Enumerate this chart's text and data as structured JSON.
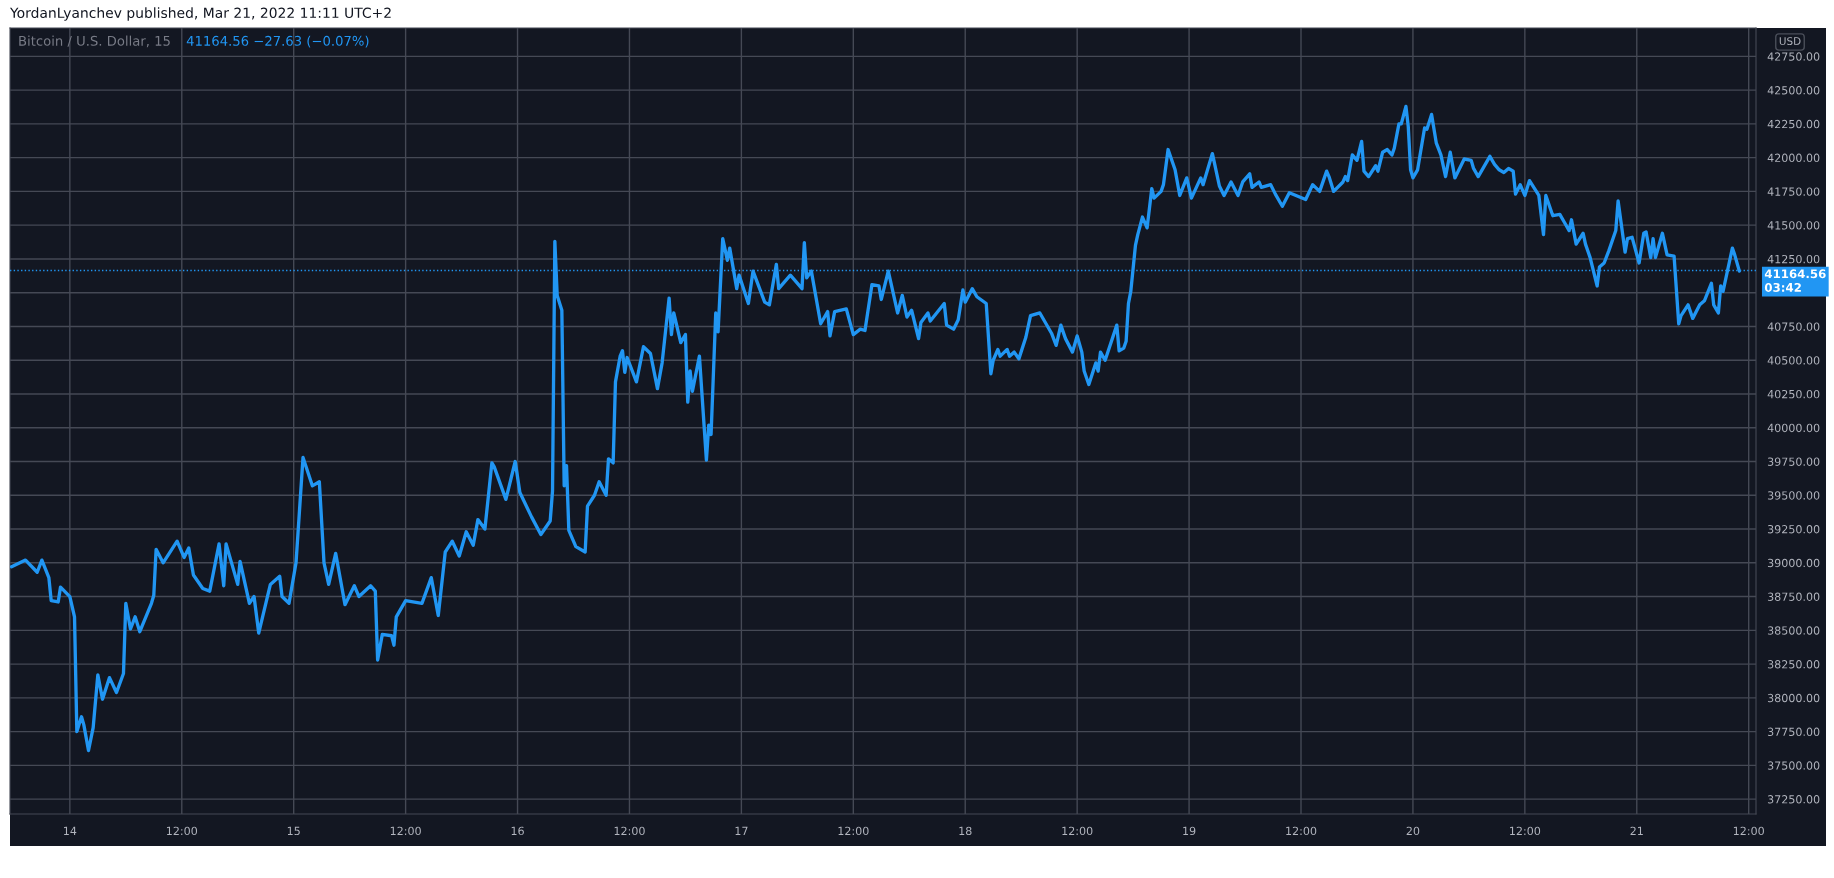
{
  "chart_data": {
    "type": "line",
    "title": "Bitcoin / U.S. Dollar, 15",
    "subtitle": "41164.56 −27.63 (−0.07%)",
    "ylabel": "USD",
    "annotations": [
      "YordanLyanchev published, Mar 21, 2022 11:11 UTC+2"
    ],
    "x": [
      "2022-03-13T17:45",
      "2022-03-13T19:15",
      "2022-03-13T20:30",
      "2022-03-13T21:00",
      "2022-03-13T21:45",
      "2022-03-13T22:00",
      "2022-03-13T22:45",
      "2022-03-13T23:00",
      "2022-03-14T00:00",
      "2022-03-14T00:30",
      "2022-03-14T00:45",
      "2022-03-14T01:15",
      "2022-03-14T01:30",
      "2022-03-14T02:00",
      "2022-03-14T02:30",
      "2022-03-14T03:00",
      "2022-03-14T03:30",
      "2022-03-14T04:15",
      "2022-03-14T05:00",
      "2022-03-14T05:45",
      "2022-03-14T06:00",
      "2022-03-14T06:30",
      "2022-03-14T07:00",
      "2022-03-14T07:30",
      "2022-03-14T08:45",
      "2022-03-14T09:00",
      "2022-03-14T09:15",
      "2022-03-14T10:00",
      "2022-03-14T11:30",
      "2022-03-14T12:15",
      "2022-03-14T12:45",
      "2022-03-14T13:15",
      "2022-03-14T14:15",
      "2022-03-14T15:00",
      "2022-03-14T16:00",
      "2022-03-14T16:30",
      "2022-03-14T16:45",
      "2022-03-14T18:00",
      "2022-03-14T18:15",
      "2022-03-14T19:15",
      "2022-03-14T19:45",
      "2022-03-14T20:15",
      "2022-03-14T21:30",
      "2022-03-14T22:30",
      "2022-03-14T22:45",
      "2022-03-14T23:30",
      "2022-03-15T00:15",
      "2022-03-15T01:00",
      "2022-03-15T02:00",
      "2022-03-15T02:45",
      "2022-03-15T03:15",
      "2022-03-15T03:45",
      "2022-03-15T04:30",
      "2022-03-15T05:30",
      "2022-03-15T06:30",
      "2022-03-15T07:00",
      "2022-03-15T08:15",
      "2022-03-15T08:45",
      "2022-03-15T09:00",
      "2022-03-15T09:30",
      "2022-03-15T10:30",
      "2022-03-15T10:45",
      "2022-03-15T11:00",
      "2022-03-15T12:00",
      "2022-03-15T13:45",
      "2022-03-15T14:45",
      "2022-03-15T15:30",
      "2022-03-15T16:15",
      "2022-03-15T17:00",
      "2022-03-15T17:45",
      "2022-03-15T18:30",
      "2022-03-15T19:15",
      "2022-03-15T19:45",
      "2022-03-15T20:30",
      "2022-03-15T21:15",
      "2022-03-15T21:30",
      "2022-03-15T22:45",
      "2022-03-15T23:45",
      "2022-03-16T00:15",
      "2022-03-16T01:30",
      "2022-03-16T02:30",
      "2022-03-16T03:30",
      "2022-03-16T03:45",
      "2022-03-16T04:00",
      "2022-03-16T04:15",
      "2022-03-16T04:45",
      "2022-03-16T05:00",
      "2022-03-16T05:15",
      "2022-03-16T05:30",
      "2022-03-16T06:15",
      "2022-03-16T07:15",
      "2022-03-16T07:30",
      "2022-03-16T08:15",
      "2022-03-16T08:45",
      "2022-03-16T09:30",
      "2022-03-16T09:45",
      "2022-03-16T10:15",
      "2022-03-16T10:30",
      "2022-03-16T11:00",
      "2022-03-16T11:15",
      "2022-03-16T11:30",
      "2022-03-16T11:45",
      "2022-03-16T12:45",
      "2022-03-16T13:30",
      "2022-03-16T14:15",
      "2022-03-16T15:00",
      "2022-03-16T15:30",
      "2022-03-16T16:15",
      "2022-03-16T16:30",
      "2022-03-16T16:45",
      "2022-03-16T17:30",
      "2022-03-16T18:00",
      "2022-03-16T18:15",
      "2022-03-16T18:30",
      "2022-03-16T18:45",
      "2022-03-16T19:30",
      "2022-03-16T20:15",
      "2022-03-16T20:30",
      "2022-03-16T20:45",
      "2022-03-16T21:15",
      "2022-03-16T21:30",
      "2022-03-16T22:00",
      "2022-03-16T22:30",
      "2022-03-16T22:45",
      "2022-03-16T23:30",
      "2022-03-16T23:45",
      "2022-03-17T00:45",
      "2022-03-17T01:15",
      "2022-03-17T02:30",
      "2022-03-17T03:00",
      "2022-03-17T03:45",
      "2022-03-17T04:00",
      "2022-03-17T05:15",
      "2022-03-17T06:30",
      "2022-03-17T06:45",
      "2022-03-17T07:00",
      "2022-03-17T07:30",
      "2022-03-17T08:30",
      "2022-03-17T09:15",
      "2022-03-17T09:30",
      "2022-03-17T10:00",
      "2022-03-17T11:15",
      "2022-03-17T12:00",
      "2022-03-17T12:45",
      "2022-03-17T13:15",
      "2022-03-17T14:00",
      "2022-03-17T14:45",
      "2022-03-17T15:00",
      "2022-03-17T15:45",
      "2022-03-17T16:45",
      "2022-03-17T17:15",
      "2022-03-17T17:45",
      "2022-03-17T18:15",
      "2022-03-17T19:00",
      "2022-03-17T19:15",
      "2022-03-17T20:00",
      "2022-03-17T20:15",
      "2022-03-17T21:45",
      "2022-03-17T22:00",
      "2022-03-17T22:45",
      "2022-03-17T23:15",
      "2022-03-17T23:45",
      "2022-03-18T00:00",
      "2022-03-18T00:45",
      "2022-03-18T01:15",
      "2022-03-18T02:15",
      "2022-03-18T02:45",
      "2022-03-18T03:00",
      "2022-03-18T03:30",
      "2022-03-18T03:45",
      "2022-03-18T04:30",
      "2022-03-18T04:45",
      "2022-03-18T05:15",
      "2022-03-18T05:45",
      "2022-03-18T06:30",
      "2022-03-18T07:00",
      "2022-03-18T08:00",
      "2022-03-18T09:15",
      "2022-03-18T09:45",
      "2022-03-18T10:15",
      "2022-03-18T10:45",
      "2022-03-18T11:30",
      "2022-03-18T12:00",
      "2022-03-18T12:30",
      "2022-03-18T12:45",
      "2022-03-18T13:15",
      "2022-03-18T14:00",
      "2022-03-18T14:15",
      "2022-03-18T14:30",
      "2022-03-18T15:00",
      "2022-03-18T16:15",
      "2022-03-18T16:30",
      "2022-03-18T17:00",
      "2022-03-18T17:15",
      "2022-03-18T17:30",
      "2022-03-18T17:45",
      "2022-03-18T18:15",
      "2022-03-18T18:30",
      "2022-03-18T19:00",
      "2022-03-18T19:30",
      "2022-03-18T20:00",
      "2022-03-18T20:15",
      "2022-03-18T21:00",
      "2022-03-18T21:15",
      "2022-03-18T21:45",
      "2022-03-18T22:30",
      "2022-03-18T23:00",
      "2022-03-18T23:45",
      "2022-03-19T00:15",
      "2022-03-19T01:15",
      "2022-03-19T01:30",
      "2022-03-19T02:30",
      "2022-03-19T02:45",
      "2022-03-19T03:15",
      "2022-03-19T03:45",
      "2022-03-19T04:30",
      "2022-03-19T05:15",
      "2022-03-19T05:45",
      "2022-03-19T06:30",
      "2022-03-19T06:45",
      "2022-03-19T07:30",
      "2022-03-19T07:45",
      "2022-03-19T08:45",
      "2022-03-19T09:15",
      "2022-03-19T10:00",
      "2022-03-19T10:45",
      "2022-03-19T12:30",
      "2022-03-19T13:15",
      "2022-03-19T14:00",
      "2022-03-19T14:45",
      "2022-03-19T15:00",
      "2022-03-19T15:30",
      "2022-03-19T16:30",
      "2022-03-19T16:45",
      "2022-03-19T17:00",
      "2022-03-19T17:30",
      "2022-03-19T18:00",
      "2022-03-19T18:30",
      "2022-03-19T18:45",
      "2022-03-19T19:15",
      "2022-03-19T20:00",
      "2022-03-19T20:15",
      "2022-03-19T20:45",
      "2022-03-19T21:15",
      "2022-03-19T21:45",
      "2022-03-19T22:00",
      "2022-03-19T22:30",
      "2022-03-19T22:45",
      "2022-03-19T23:15",
      "2022-03-19T23:30",
      "2022-03-19T23:45",
      "2022-03-20T00:00",
      "2022-03-20T00:30",
      "2022-03-20T01:15",
      "2022-03-20T01:30",
      "2022-03-20T02:00",
      "2022-03-20T02:30",
      "2022-03-20T03:00",
      "2022-03-20T03:30",
      "2022-03-20T04:00",
      "2022-03-20T04:30",
      "2022-03-20T05:30",
      "2022-03-20T06:15",
      "2022-03-20T06:30",
      "2022-03-20T07:00",
      "2022-03-20T08:15",
      "2022-03-20T08:45",
      "2022-03-20T09:15",
      "2022-03-20T09:45",
      "2022-03-20T10:15",
      "2022-03-20T10:45",
      "2022-03-20T11:00",
      "2022-03-20T11:30",
      "2022-03-20T12:00",
      "2022-03-20T12:30",
      "2022-03-20T13:30",
      "2022-03-20T14:00",
      "2022-03-20T14:15",
      "2022-03-20T15:00",
      "2022-03-20T15:45",
      "2022-03-20T16:15",
      "2022-03-20T16:45",
      "2022-03-20T17:00",
      "2022-03-20T17:30",
      "2022-03-20T18:15",
      "2022-03-20T18:30",
      "2022-03-20T19:00",
      "2022-03-20T19:45",
      "2022-03-20T20:00",
      "2022-03-20T20:30",
      "2022-03-20T21:00",
      "2022-03-20T21:45",
      "2022-03-20T22:00",
      "2022-03-20T22:45",
      "2022-03-20T23:00",
      "2022-03-20T23:30",
      "2022-03-21T00:15",
      "2022-03-21T00:45",
      "2022-03-21T01:00",
      "2022-03-21T01:30",
      "2022-03-21T01:45",
      "2022-03-21T02:00",
      "2022-03-21T02:45",
      "2022-03-21T03:15",
      "2022-03-21T04:00",
      "2022-03-21T04:30",
      "2022-03-21T04:45",
      "2022-03-21T05:30",
      "2022-03-21T06:00",
      "2022-03-21T06:45",
      "2022-03-21T07:15",
      "2022-03-21T08:00",
      "2022-03-21T08:15",
      "2022-03-21T08:45",
      "2022-03-21T09:00",
      "2022-03-21T09:15",
      "2022-03-21T09:45",
      "2022-03-21T10:15",
      "2022-03-21T10:30",
      "2022-03-21T11:00"
    ],
    "series": [
      {
        "color": "#2196f3",
        "values": [
          38970,
          39020,
          38930,
          39020,
          38890,
          38720,
          38710,
          38820,
          38750,
          38600,
          37750,
          37860,
          37800,
          37610,
          37780,
          38170,
          37990,
          38150,
          38040,
          38180,
          38700,
          38510,
          38600,
          38490,
          38700,
          38760,
          39100,
          39000,
          39160,
          39040,
          39110,
          38910,
          38810,
          38790,
          39140,
          38830,
          39140,
          38840,
          39010,
          38700,
          38750,
          38480,
          38840,
          38900,
          38750,
          38700,
          39000,
          39780,
          39570,
          39600,
          39000,
          38840,
          39070,
          38690,
          38830,
          38750,
          38830,
          38790,
          38280,
          38470,
          38460,
          38390,
          38600,
          38720,
          38700,
          38890,
          38610,
          39080,
          39160,
          39050,
          39230,
          39130,
          39320,
          39250,
          39740,
          39710,
          39470,
          39750,
          39520,
          39340,
          39210,
          39310,
          39530,
          41380,
          40980,
          40870,
          39570,
          39720,
          39240,
          39120,
          39080,
          39420,
          39500,
          39600,
          39500,
          39770,
          39740,
          40340,
          40530,
          40570,
          40410,
          40520,
          40340,
          40600,
          40550,
          40290,
          40480,
          40960,
          40690,
          40850,
          40630,
          40690,
          40190,
          40420,
          40270,
          40530,
          39760,
          40020,
          39950,
          40850,
          40710,
          41400,
          41240,
          41330,
          41030,
          41130,
          40920,
          41160,
          40930,
          40910,
          41210,
          41030,
          41130,
          41030,
          41370,
          41110,
          41160,
          40770,
          40860,
          40680,
          40860,
          40880,
          40690,
          40730,
          40720,
          41060,
          41050,
          40950,
          41160,
          40850,
          40980,
          40820,
          40870,
          40660,
          40780,
          40850,
          40790,
          40920,
          40760,
          40730,
          40800,
          41020,
          40930,
          41030,
          40970,
          40920,
          40400,
          40500,
          40580,
          40530,
          40580,
          40530,
          40560,
          40510,
          40670,
          40830,
          40850,
          40700,
          40610,
          40760,
          40660,
          40560,
          40680,
          40560,
          40420,
          40320,
          40480,
          40420,
          40560,
          40500,
          40760,
          40570,
          40590,
          40640,
          40920,
          41010,
          41350,
          41430,
          41560,
          41480,
          41770,
          41700,
          41750,
          41800,
          42060,
          41910,
          41720,
          41850,
          41700,
          41850,
          41800,
          42030,
          41950,
          41790,
          41720,
          41820,
          41720,
          41820,
          41880,
          41780,
          41820,
          41780,
          41800,
          41730,
          41640,
          41740,
          41690,
          41800,
          41750,
          41900,
          41860,
          41750,
          41820,
          41860,
          41830,
          42020,
          41980,
          42120,
          41900,
          41860,
          41940,
          41900,
          42040,
          42060,
          42020,
          42070,
          42250,
          42250,
          42380,
          42230,
          41910,
          41850,
          41910,
          42220,
          42210,
          42320,
          42110,
          42020,
          41860,
          42040,
          41850,
          41990,
          41980,
          41920,
          41860,
          42010,
          41950,
          41910,
          41890,
          41920,
          41900,
          41730,
          41800,
          41720,
          41830,
          41720,
          41430,
          41720,
          41570,
          41580,
          41520,
          41460,
          41540,
          41360,
          41440,
          41360,
          41260,
          41050,
          41190,
          41220,
          41310,
          41460,
          41680,
          41300,
          41400,
          41410,
          41220,
          41440,
          41450,
          41260,
          41400,
          41260,
          41440,
          41280,
          41270,
          40770,
          40830,
          40910,
          40810,
          40910,
          40940,
          41070,
          40910,
          40850,
          41050,
          41010,
          41170,
          41330,
          41280,
          41160
        ]
      }
    ],
    "xlim": [
      "2022-03-13T17:35",
      "2022-03-21T12:47"
    ],
    "ylim": [
      37140,
      42960
    ],
    "xticks": [
      {
        "value": "2022-03-14T00:00",
        "label": "14"
      },
      {
        "value": "2022-03-14T12:00",
        "label": "12:00"
      },
      {
        "value": "2022-03-15T00:00",
        "label": "15"
      },
      {
        "value": "2022-03-15T12:00",
        "label": "12:00"
      },
      {
        "value": "2022-03-16T00:00",
        "label": "16"
      },
      {
        "value": "2022-03-16T12:00",
        "label": "12:00"
      },
      {
        "value": "2022-03-17T00:00",
        "label": "17"
      },
      {
        "value": "2022-03-17T12:00",
        "label": "12:00"
      },
      {
        "value": "2022-03-18T00:00",
        "label": "18"
      },
      {
        "value": "2022-03-18T12:00",
        "label": "12:00"
      },
      {
        "value": "2022-03-19T00:00",
        "label": "19"
      },
      {
        "value": "2022-03-19T12:00",
        "label": "12:00"
      },
      {
        "value": "2022-03-20T00:00",
        "label": "20"
      },
      {
        "value": "2022-03-20T12:00",
        "label": "12:00"
      },
      {
        "value": "2022-03-21T00:00",
        "label": "21"
      },
      {
        "value": "2022-03-21T12:00",
        "label": "12:00"
      }
    ],
    "yticks": [
      {
        "value": 37250,
        "label": "37250.00"
      },
      {
        "value": 37500,
        "label": "37500.00"
      },
      {
        "value": 37750,
        "label": "37750.00"
      },
      {
        "value": 38000,
        "label": "38000.00"
      },
      {
        "value": 38250,
        "label": "38250.00"
      },
      {
        "value": 38500,
        "label": "38500.00"
      },
      {
        "value": 38750,
        "label": "38750.00"
      },
      {
        "value": 39000,
        "label": "39000.00"
      },
      {
        "value": 39250,
        "label": "39250.00"
      },
      {
        "value": 39500,
        "label": "39500.00"
      },
      {
        "value": 39750,
        "label": "39750.00"
      },
      {
        "value": 40000,
        "label": "40000.00"
      },
      {
        "value": 40250,
        "label": "40250.00"
      },
      {
        "value": 40500,
        "label": "40500.00"
      },
      {
        "value": 40750,
        "label": "40750.00"
      },
      {
        "value": 41000,
        "label": null
      },
      {
        "value": 41250,
        "label": "41250.00"
      },
      {
        "value": 41500,
        "label": "41500.00"
      },
      {
        "value": 41750,
        "label": "41750.00"
      },
      {
        "value": 42000,
        "label": "42000.00"
      },
      {
        "value": 42250,
        "label": "42250.00"
      },
      {
        "value": 42500,
        "label": "42500.00"
      },
      {
        "value": 42750,
        "label": "42750.00"
      }
    ],
    "grid": true,
    "ref_lines": [
      {
        "axis": "y",
        "value": 41164.56,
        "label": "41164.56\n03:42",
        "color": "#2196f3",
        "line_style": "dotted"
      }
    ]
  }
}
